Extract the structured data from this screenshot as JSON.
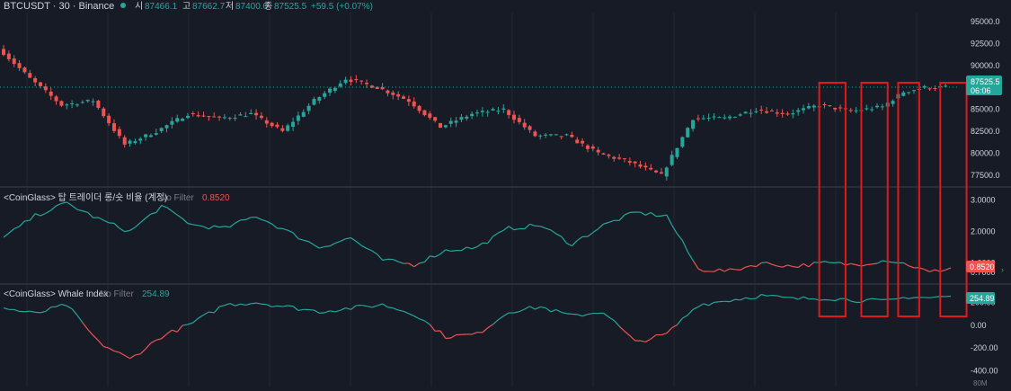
{
  "colors": {
    "background": "#171b26",
    "grid": "#232734",
    "up": "#26a69a",
    "down": "#ef5350",
    "label_text": "#b2b5be",
    "axis_text": "#d1d4dc",
    "separator": "#2a2e39",
    "highlight_box": "#e0191b",
    "last_price_line": "#26a69a"
  },
  "header": {
    "symbol": "BTCUSDT · 30 · Binance",
    "open_label": "시",
    "open_value": "87466.1",
    "high_label": "고",
    "high_value": "87662.7",
    "low_label": "저",
    "low_value": "87400.0",
    "close_label": "종",
    "close_value": "87525.5",
    "change": "+59.5 (+0.07%)"
  },
  "last_price": {
    "value": "87525.5",
    "countdown": "06:06"
  },
  "indicator1": {
    "name": "<CoinGlass> 탑 트레이더 롱/숏 비율 (계정)",
    "filter": "No Filter",
    "value": "0.8520"
  },
  "indicator2": {
    "name": "<CoinGlass> Whale Index",
    "filter": "No Filter",
    "value": "254.89"
  },
  "volume_axis_label": "80M",
  "chart_data": [
    {
      "type": "candlestick",
      "name": "BTCUSDT",
      "ylim": [
        76500,
        96000
      ],
      "yticks": [
        "95000.0",
        "92500.0",
        "90000.0",
        "87500.0",
        "85000.0",
        "82500.0",
        "80000.0",
        "77500.0"
      ],
      "last": 87525.5,
      "x_index": [
        0,
        6,
        12,
        18,
        24,
        30,
        36,
        42,
        48,
        54,
        60,
        66,
        72,
        78,
        84,
        90,
        96,
        102,
        108,
        114,
        120,
        126,
        132,
        138,
        144,
        150,
        156,
        162,
        168,
        172,
        176,
        180
      ],
      "close": [
        92000,
        88500,
        85500,
        86000,
        81000,
        82500,
        84500,
        84000,
        84500,
        82500,
        86000,
        88500,
        87500,
        86000,
        83000,
        84500,
        85000,
        82000,
        82000,
        80000,
        79000,
        77500,
        84000,
        84000,
        85000,
        84500,
        85500,
        84800,
        85300,
        87000,
        87500,
        87525
      ],
      "highlight_x_ranges": [
        [
          155,
          160
        ],
        [
          163,
          168
        ],
        [
          170,
          174
        ],
        [
          178,
          183
        ]
      ]
    },
    {
      "type": "line",
      "name": "<CoinGlass> 탑 트레이더 롱/숏 비율 (계정)",
      "ylim": [
        0.45,
        3.3
      ],
      "yticks": [
        "3.0000",
        "2.0000",
        "1.0000",
        "0.7000"
      ],
      "threshold": 1.0,
      "x_index": [
        0,
        6,
        12,
        18,
        24,
        30,
        36,
        42,
        48,
        54,
        60,
        66,
        72,
        78,
        84,
        90,
        96,
        102,
        108,
        114,
        120,
        126,
        132,
        138,
        144,
        150,
        156,
        162,
        168,
        172,
        176,
        180
      ],
      "values": [
        1.8,
        2.5,
        2.9,
        2.4,
        2.0,
        2.8,
        2.2,
        2.1,
        2.5,
        2.0,
        1.5,
        1.8,
        1.1,
        0.95,
        1.4,
        1.5,
        2.1,
        2.2,
        1.6,
        2.2,
        2.6,
        2.5,
        0.8,
        0.75,
        1.0,
        0.9,
        1.0,
        0.95,
        1.1,
        0.95,
        0.7,
        0.852
      ]
    },
    {
      "type": "line",
      "name": "<CoinGlass> Whale Index",
      "ylim": [
        -460,
        330
      ],
      "yticks": [
        "200.00",
        "0.00",
        "-200.00",
        "-400.00"
      ],
      "threshold": 0,
      "x_index": [
        0,
        6,
        12,
        18,
        24,
        30,
        36,
        42,
        48,
        54,
        60,
        66,
        72,
        78,
        84,
        90,
        96,
        102,
        108,
        114,
        120,
        126,
        132,
        138,
        144,
        150,
        156,
        162,
        168,
        172,
        176,
        180
      ],
      "values": [
        150,
        100,
        180,
        -150,
        -300,
        -100,
        20,
        180,
        200,
        160,
        120,
        150,
        180,
        100,
        -100,
        -80,
        120,
        160,
        80,
        120,
        -150,
        -80,
        180,
        220,
        260,
        230,
        240,
        220,
        210,
        250,
        240,
        254.89
      ]
    }
  ]
}
